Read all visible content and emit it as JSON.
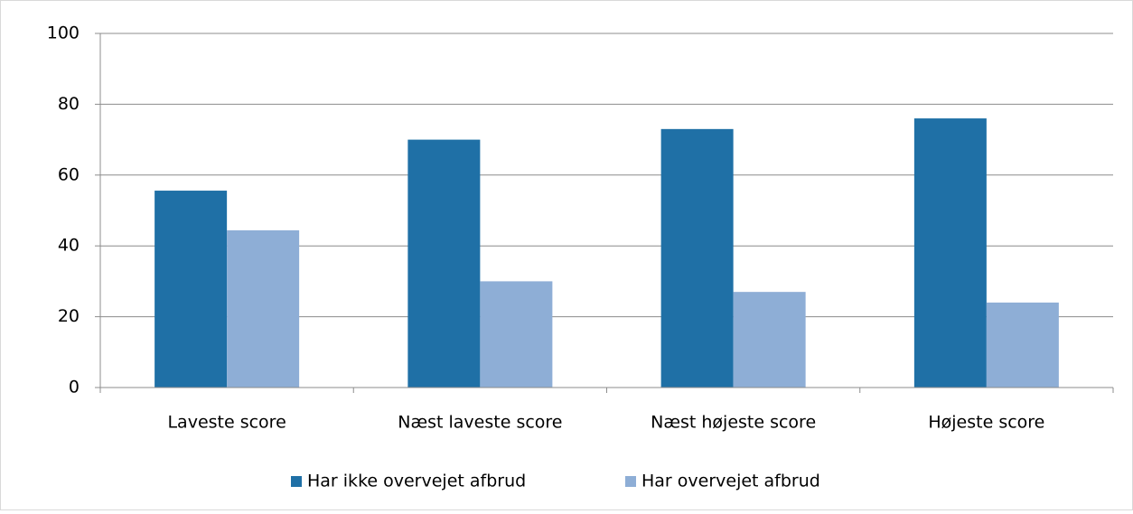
{
  "chart_data": {
    "type": "bar",
    "categories": [
      "Laveste score",
      "Næst laveste score",
      "Næst højeste score",
      "Højeste score"
    ],
    "series": [
      {
        "name": "Har ikke overvejet afbrud",
        "color": "#1f70a6",
        "values": [
          55.6,
          70,
          73,
          76
        ]
      },
      {
        "name": "Har overvejet afbrud",
        "color": "#8eaed6",
        "values": [
          44.4,
          30,
          27,
          24
        ]
      }
    ],
    "ylim": [
      0,
      100
    ],
    "yticks": [
      0,
      20,
      40,
      60,
      80,
      100
    ],
    "grid": true,
    "legend": "bottom"
  }
}
